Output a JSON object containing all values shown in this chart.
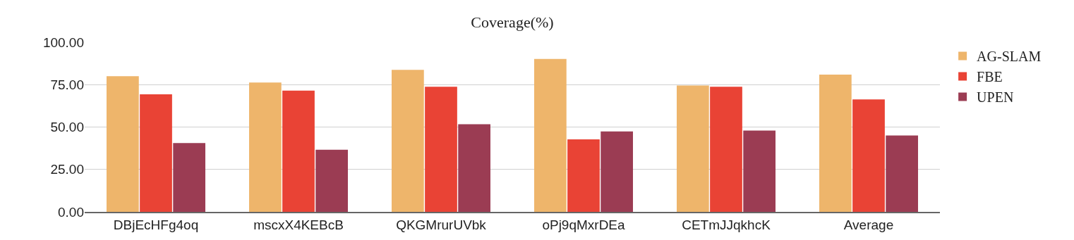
{
  "chart_data": {
    "type": "bar",
    "title": "Coverage(%)",
    "categories": [
      "DBjEcHFg4oq",
      "mscxX4KEBcB",
      "QKGMrurUVbk",
      "oPj9qMxrDEa",
      "CETmJJqkhcK",
      "Average"
    ],
    "series": [
      {
        "name": "AG-SLAM",
        "color": "#eeb56b",
        "values": [
          80.0,
          76.2,
          83.7,
          90.1,
          74.5,
          80.9
        ]
      },
      {
        "name": "FBE",
        "color": "#e94335",
        "values": [
          69.3,
          71.5,
          73.8,
          42.7,
          73.8,
          66.3
        ]
      },
      {
        "name": "UPEN",
        "color": "#9b3c53",
        "values": [
          40.6,
          36.6,
          51.7,
          47.4,
          47.9,
          45.0
        ]
      }
    ],
    "ylim": [
      0,
      100
    ],
    "yticks": [
      {
        "value": 0,
        "label": "0.00"
      },
      {
        "value": 25,
        "label": "25.00"
      },
      {
        "value": 50,
        "label": "50.00"
      },
      {
        "value": 75,
        "label": "75.00"
      },
      {
        "value": 100,
        "label": "100.00"
      }
    ],
    "grid": "y",
    "legend": "top right"
  }
}
